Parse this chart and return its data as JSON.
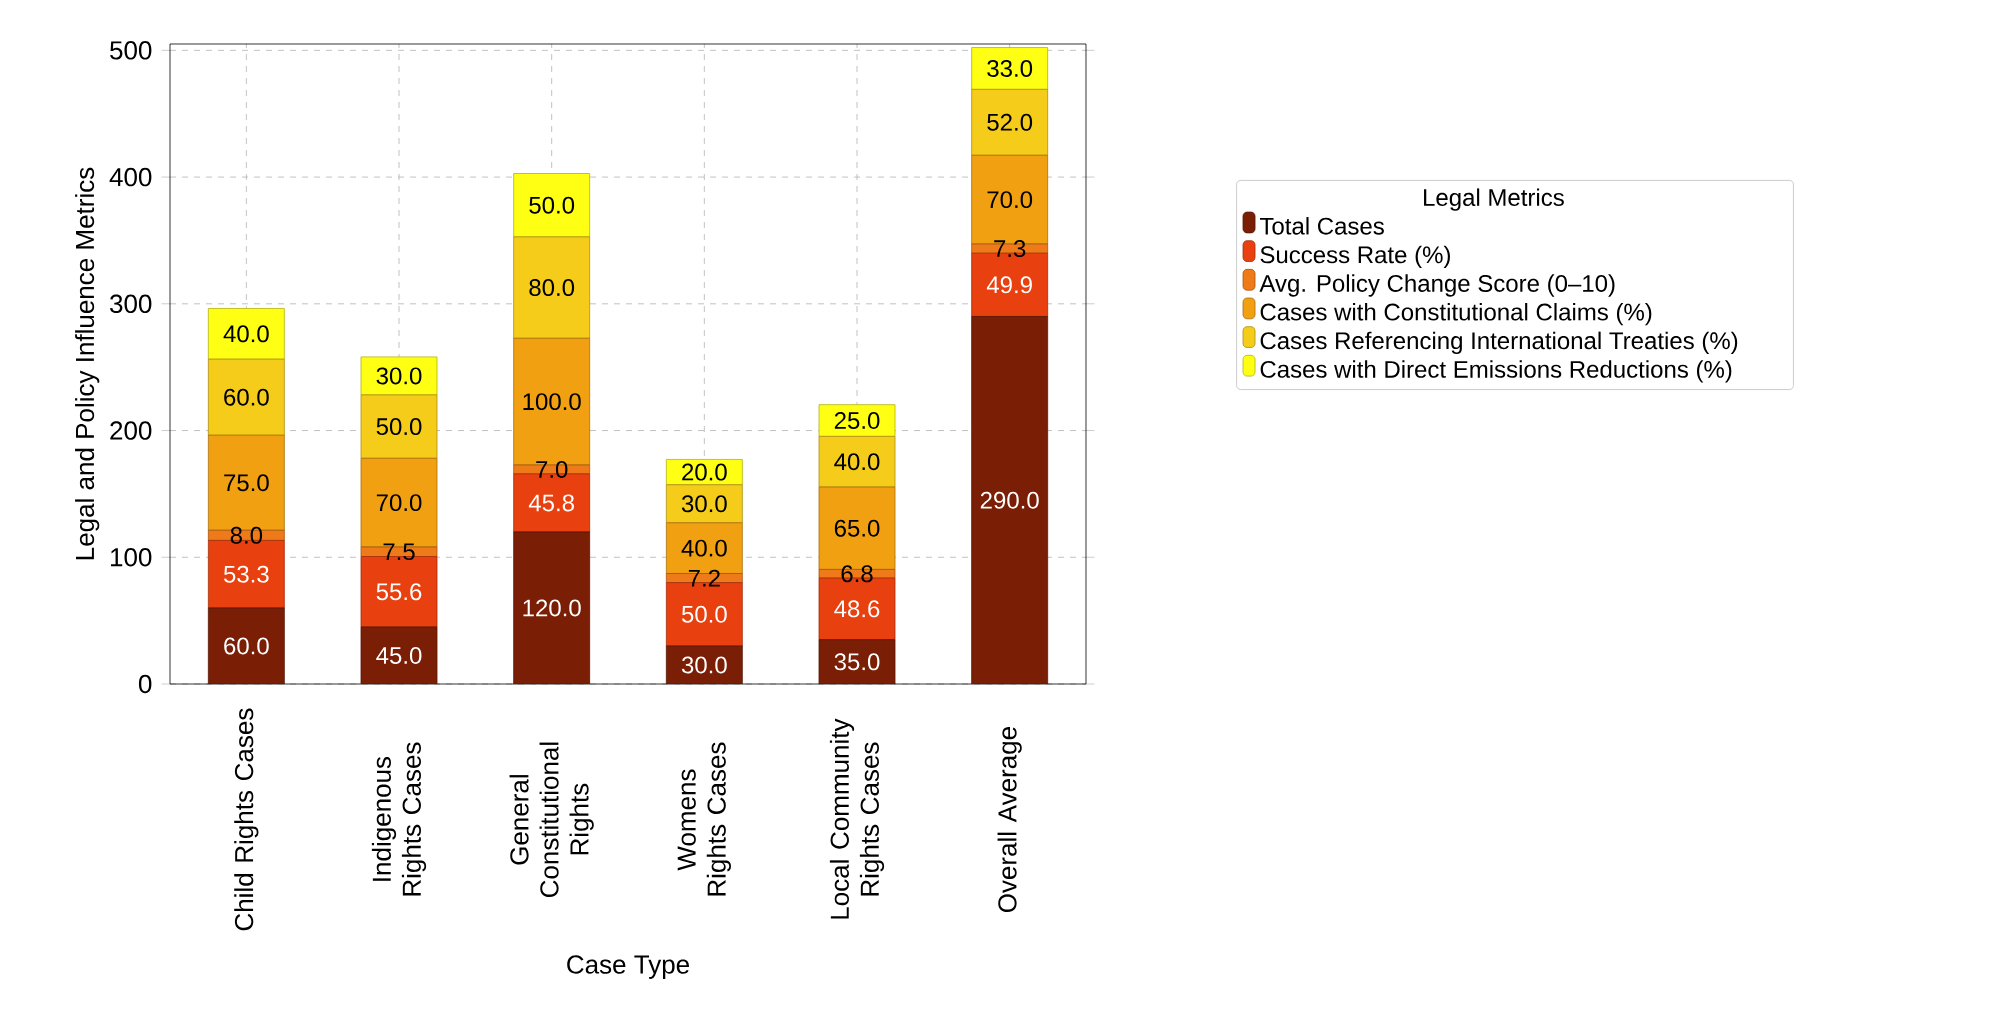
{
  "chart_data": {
    "type": "bar",
    "stacked": true,
    "xlabel": "Case Type",
    "ylabel": "Legal and Policy Influence Metrics",
    "legend_title": "Legal Metrics",
    "legend": "right",
    "grid": true,
    "categories": [
      "Child Rights Cases",
      "Indigenous Rights Cases",
      "General Constitutional Rights",
      "Womens Rights Cases",
      "Local Community Rights Cases",
      "Overall Average"
    ],
    "ylim": [
      0,
      505
    ],
    "yticks": [
      0,
      100,
      200,
      300,
      400,
      500
    ],
    "series": [
      {
        "name": "Total Cases",
        "color": "#7b1e06",
        "values": [
          60,
          45,
          120,
          30,
          35,
          290
        ],
        "value_labels": [
          "60.0",
          "45.0",
          "120.0",
          "30.0",
          "35.0",
          "290.0"
        ]
      },
      {
        "name": "Success Rate (%)",
        "color": "#e8400f",
        "values": [
          53.3,
          55.6,
          45.8,
          50,
          48.6,
          49.9
        ],
        "value_labels": [
          "53.3",
          "55.6",
          "45.8",
          "50.0",
          "48.6",
          "49.9"
        ]
      },
      {
        "name": "Avg. Policy Change Score (0–10)",
        "color": "#ee7a1a",
        "values": [
          8.0,
          7.5,
          7.0,
          7.2,
          6.8,
          7.3
        ],
        "value_labels": [
          "8.0",
          "7.5",
          "7.0",
          "7.2",
          "6.8",
          "7.3"
        ]
      },
      {
        "name": "Cases with Constitutional Claims (%)",
        "color": "#f0a010",
        "values": [
          75,
          70,
          100,
          40,
          65,
          70
        ],
        "value_labels": [
          "75.0",
          "70.0",
          "100.0",
          "40.0",
          "65.0",
          "70.0"
        ]
      },
      {
        "name": "Cases Referencing International Treaties (%)",
        "color": "#f5cc1a",
        "values": [
          60,
          50,
          80,
          30,
          40,
          52
        ],
        "value_labels": [
          "60.0",
          "50.0",
          "80.0",
          "30.0",
          "40.0",
          "52.0"
        ]
      },
      {
        "name": "Cases with Direct Emissions Reductions (%)",
        "color": "#ffff14",
        "values": [
          40,
          30,
          50,
          20,
          25,
          33
        ],
        "value_labels": [
          "40.0",
          "30.0",
          "50.0",
          "20.0",
          "25.0",
          "33.0"
        ]
      }
    ]
  }
}
